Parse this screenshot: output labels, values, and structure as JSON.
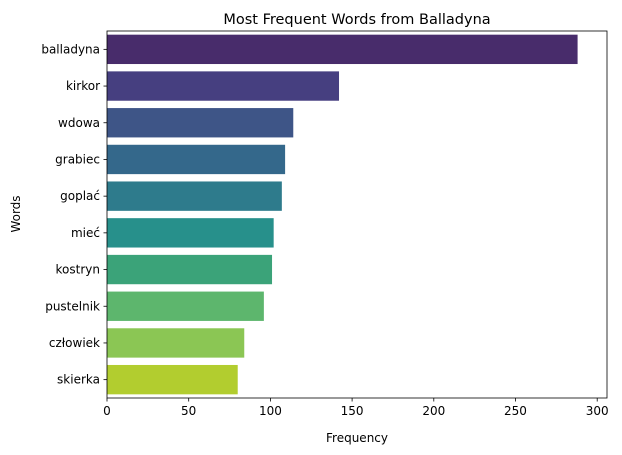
{
  "chart_data": {
    "type": "bar",
    "orientation": "horizontal",
    "title": "Most Frequent Words from Balladyna",
    "xlabel": "Frequency",
    "ylabel": "Words",
    "categories": [
      "balladyna",
      "kirkor",
      "wdowa",
      "grabiec",
      "goplać",
      "mieć",
      "kostryn",
      "pustelnik",
      "człowiek",
      "skierka"
    ],
    "values": [
      288,
      142,
      114,
      109,
      107,
      102,
      101,
      96,
      84,
      80
    ],
    "xlim": [
      0,
      306
    ],
    "xticks": [
      0,
      50,
      100,
      150,
      200,
      250,
      300
    ],
    "grid": false,
    "legend": "none",
    "palette": "viridis",
    "colors": [
      "#482c6b",
      "#463f80",
      "#3e5587",
      "#34688b",
      "#2e7b8c",
      "#27908b",
      "#3ba379",
      "#5db66d",
      "#8bc654",
      "#b2cd2f"
    ]
  }
}
